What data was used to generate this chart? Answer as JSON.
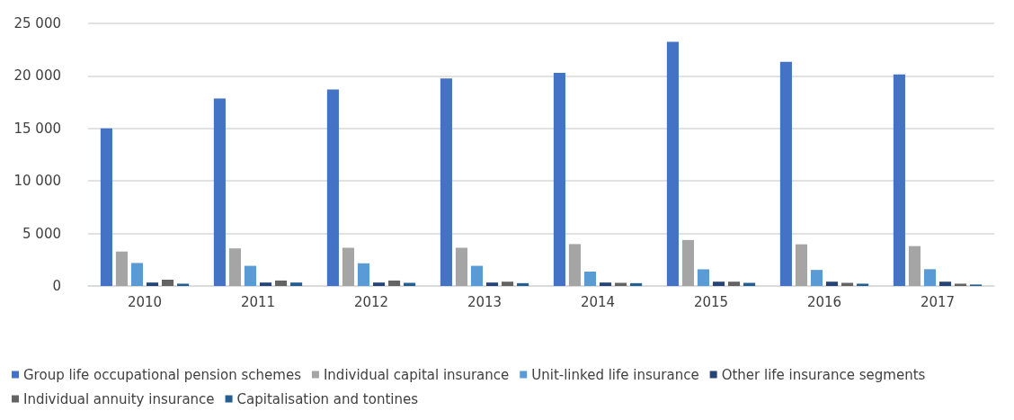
{
  "chart_data": {
    "type": "bar",
    "categories": [
      "2010",
      "2011",
      "2012",
      "2013",
      "2014",
      "2015",
      "2016",
      "2017"
    ],
    "series": [
      {
        "name": "Group life occupational pension schemes",
        "color": "#4472c4",
        "values": [
          15000,
          17850,
          18700,
          19750,
          20300,
          23250,
          21350,
          20150
        ]
      },
      {
        "name": "Individual capital insurance",
        "color": "#a5a5a5",
        "values": [
          3280,
          3580,
          3640,
          3640,
          3990,
          4380,
          3970,
          3800
        ]
      },
      {
        "name": "Unit-linked life insurance",
        "color": "#5b9bd5",
        "values": [
          2190,
          1920,
          2160,
          1920,
          1370,
          1590,
          1530,
          1600
        ]
      },
      {
        "name": "Other life insurance segments",
        "color": "#264478",
        "values": [
          330,
          330,
          330,
          330,
          330,
          410,
          410,
          410
        ]
      },
      {
        "name": "Individual annuity insurance",
        "color": "#636363",
        "values": [
          600,
          520,
          520,
          410,
          300,
          410,
          300,
          220
        ]
      },
      {
        "name": "Capitalisation and tontines",
        "color": "#255e91",
        "values": [
          220,
          330,
          300,
          270,
          270,
          300,
          220,
          140
        ]
      }
    ],
    "ylim": [
      0,
      25000
    ],
    "yticks": [
      {
        "value": 0,
        "label": "0"
      },
      {
        "value": 5000,
        "label": "5 000"
      },
      {
        "value": 10000,
        "label": "10 000"
      },
      {
        "value": 15000,
        "label": "15 000"
      },
      {
        "value": 20000,
        "label": "20 000"
      },
      {
        "value": 25000,
        "label": "25 000"
      }
    ],
    "grid": "y",
    "legend": "bottom"
  }
}
